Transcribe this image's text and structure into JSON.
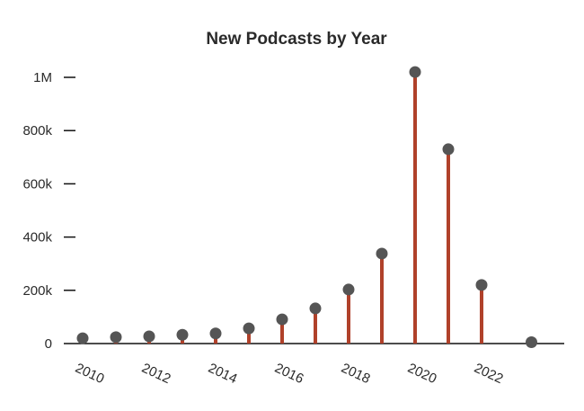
{
  "chart_data": {
    "type": "lollipop",
    "title": "New Podcasts by Year",
    "xlabel": "",
    "ylabel": "",
    "x": [
      2010,
      2011,
      2012,
      2013,
      2014,
      2015,
      2016,
      2017,
      2018,
      2019,
      2020,
      2021,
      2022,
      2023
    ],
    "values": [
      20000,
      24000,
      27000,
      33000,
      38000,
      57000,
      91000,
      132000,
      203000,
      338000,
      1020000,
      730000,
      220000,
      5000
    ],
    "x_tick_labels": [
      "2010",
      "2012",
      "2014",
      "2016",
      "2018",
      "2020",
      "2022"
    ],
    "y_ticks": [
      0,
      200000,
      400000,
      600000,
      800000,
      1000000
    ],
    "y_tick_labels": [
      "0",
      "200k",
      "400k",
      "600k",
      "800k",
      "1M"
    ],
    "ylim": [
      0,
      1050000
    ],
    "grid": false,
    "legend": null,
    "colors": {
      "stem": "#b0412a",
      "marker": "#555555",
      "axis": "#111111",
      "text": "#2a2a2a"
    }
  }
}
